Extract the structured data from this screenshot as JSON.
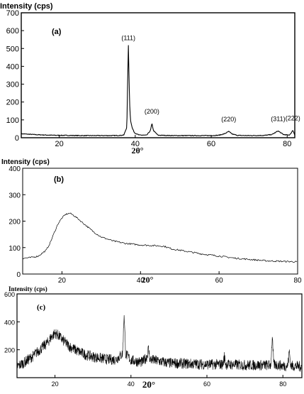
{
  "chart_data": [
    {
      "panel": "(a)",
      "type": "line",
      "ylabel": "Intensity (cps)",
      "xlabel": "2θ°",
      "xlim": [
        10,
        82
      ],
      "ylim": [
        0,
        700
      ],
      "xticks": [
        20,
        40,
        60,
        80
      ],
      "yticks": [
        0,
        100,
        200,
        300,
        400,
        500,
        600,
        700
      ],
      "baseline": 12,
      "peaks": [
        {
          "label": "(111)",
          "x": 38.2,
          "y": 515
        },
        {
          "label": "(200)",
          "x": 44.4,
          "y": 80
        },
        {
          "label": "(220)",
          "x": 64.6,
          "y": 35
        },
        {
          "label": "(311)",
          "x": 77.6,
          "y": 38
        },
        {
          "label": "(222)",
          "x": 81.5,
          "y": 42
        }
      ],
      "series": [
        {
          "x": [
            10,
            14,
            18,
            22,
            26,
            30,
            34,
            36,
            37,
            37.8,
            38.0,
            38.2,
            38.4,
            38.6,
            38.8,
            39.2,
            39.8,
            41,
            43,
            44.0,
            44.4,
            44.8,
            46,
            50,
            55,
            60,
            62,
            63.5,
            64.6,
            65.6,
            67,
            70,
            74,
            76,
            77.6,
            79,
            80.5,
            81.1,
            81.5,
            81.9,
            82
          ],
          "y": [
            22,
            17,
            14,
            13,
            12,
            12,
            12,
            13,
            15,
            60,
            320,
            515,
            300,
            150,
            95,
            55,
            28,
            15,
            14,
            40,
            80,
            40,
            14,
            12,
            12,
            12,
            14,
            22,
            35,
            20,
            13,
            12,
            13,
            18,
            38,
            18,
            14,
            28,
            42,
            20,
            15
          ]
        }
      ]
    },
    {
      "panel": "(b)",
      "type": "line",
      "ylabel": "Intensity (cps)",
      "xlabel": "20°",
      "xlim": [
        10,
        80
      ],
      "ylim": [
        0,
        400
      ],
      "xticks": [
        20,
        40,
        60,
        80
      ],
      "yticks": [
        0,
        100,
        200,
        300,
        400
      ],
      "series": [
        {
          "x": [
            10,
            12,
            14,
            16,
            17,
            18,
            19,
            20,
            21,
            22,
            23,
            24,
            26,
            28,
            30,
            33,
            36,
            40,
            44,
            46,
            48,
            52,
            56,
            60,
            64,
            68,
            72,
            76,
            80
          ],
          "y": [
            60,
            62,
            68,
            90,
            118,
            155,
            190,
            212,
            226,
            230,
            222,
            210,
            185,
            160,
            140,
            125,
            116,
            110,
            107,
            105,
            95,
            85,
            75,
            68,
            60,
            55,
            50,
            48,
            46
          ]
        }
      ]
    },
    {
      "panel": "(c)",
      "type": "line",
      "ylabel": "Intensity (cps)",
      "xlabel": "20°",
      "xlim": [
        10,
        85
      ],
      "ylim": [
        0,
        600
      ],
      "xticks": [
        20,
        40,
        60,
        80
      ],
      "yticks": [
        200,
        400,
        600
      ],
      "series": [
        {
          "x": [
            10,
            12,
            14,
            16,
            18,
            19,
            20,
            21,
            22,
            24,
            26,
            28,
            30,
            34,
            36,
            37.8,
            38.2,
            38.6,
            40,
            43,
            44.2,
            44.6,
            45,
            50,
            55,
            60,
            64.2,
            64.6,
            65,
            70,
            76.8,
            77.2,
            77.6,
            80,
            81.3,
            81.7,
            82.1,
            85
          ],
          "y": [
            80,
            110,
            150,
            200,
            250,
            290,
            320,
            300,
            270,
            220,
            190,
            165,
            150,
            130,
            130,
            170,
            460,
            170,
            125,
            110,
            150,
            210,
            130,
            105,
            100,
            95,
            95,
            150,
            95,
            90,
            90,
            290,
            95,
            85,
            85,
            190,
            85,
            80
          ]
        }
      ]
    }
  ]
}
